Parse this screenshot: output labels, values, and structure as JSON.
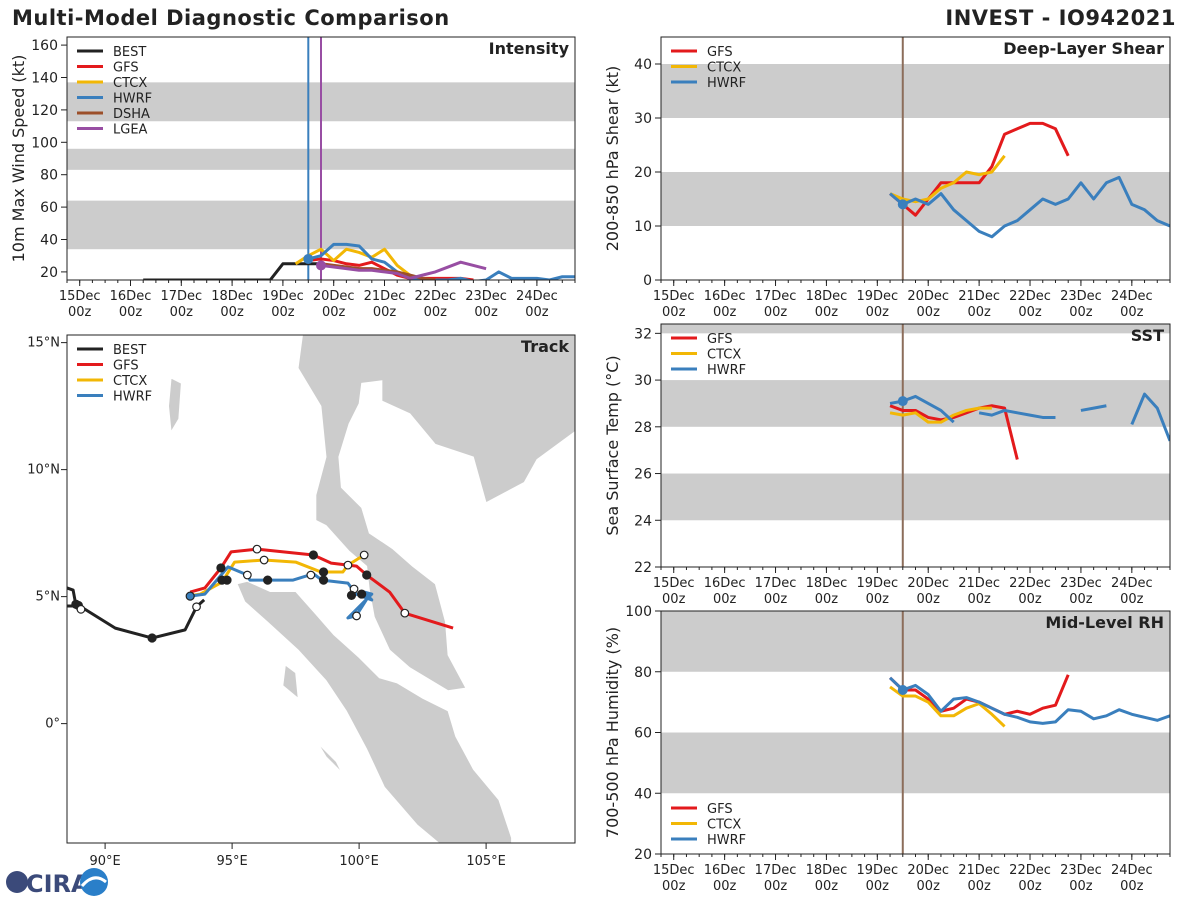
{
  "header": {
    "title": "Multi-Model Diagnostic Comparison",
    "storm": "INVEST - IO942021"
  },
  "logo": {
    "text": "CIRA"
  },
  "colors": {
    "BEST": "#222222",
    "GFS": "#e31a1c",
    "CTCX": "#f2b705",
    "HWRF": "#3a7fbd",
    "DSHA": "#9c4f2a",
    "LGEA": "#984ea3",
    "band": "#cccccc",
    "land": "#cccccc",
    "vline": "#8c6d5a"
  },
  "chart_data": [
    {
      "id": "intensity",
      "type": "line",
      "title": "Intensity",
      "ylabel": "10m Max Wind Speed (kt)",
      "xlim": [
        "14Dec 18z",
        "24Dec 18z"
      ],
      "ylim": [
        15,
        165
      ],
      "xticks": [
        "15Dec 00z",
        "16Dec 00z",
        "17Dec 00z",
        "18Dec 00z",
        "19Dec 00z",
        "20Dec 00z",
        "21Dec 00z",
        "22Dec 00z",
        "23Dec 00z",
        "24Dec 00z"
      ],
      "yticks": [
        20,
        40,
        60,
        80,
        100,
        120,
        140,
        160
      ],
      "bands": [
        [
          34,
          64
        ],
        [
          83,
          96
        ],
        [
          113,
          137
        ]
      ],
      "vlines": [
        {
          "t": "19Dec 12z",
          "color": "HWRF"
        },
        {
          "t": "19Dec 18z",
          "color": "LGEA"
        }
      ],
      "legend": [
        "BEST",
        "GFS",
        "CTCX",
        "HWRF",
        "DSHA",
        "LGEA"
      ],
      "series": [
        {
          "name": "BEST",
          "start": "16Dec 06z",
          "interval": "6h",
          "values": [
            15,
            15,
            15,
            15,
            15,
            15,
            15,
            15,
            15,
            15,
            15,
            25,
            25,
            25,
            25
          ]
        },
        {
          "name": "GFS",
          "start": "19Dec 12z",
          "interval": "6h",
          "values": [
            27,
            28,
            27,
            25,
            24,
            26,
            22,
            18,
            16,
            16,
            16,
            16,
            16,
            15
          ]
        },
        {
          "name": "CTCX",
          "start": "19Dec 06z",
          "interval": "6h",
          "values": [
            25,
            30,
            34,
            27,
            34,
            32,
            29,
            34,
            24,
            18,
            15
          ]
        },
        {
          "name": "HWRF",
          "start": "19Dec 12z",
          "interval": "6h",
          "values": [
            28,
            30,
            37,
            37,
            36,
            28,
            26,
            20,
            16,
            15,
            15,
            15,
            16,
            14,
            15,
            20,
            16,
            16,
            16,
            15,
            17,
            17
          ],
          "dot": "19Dec 12z"
        },
        {
          "name": "DSHA",
          "start": "19Dec 18z",
          "interval": "6h",
          "values": [
            25,
            24,
            23,
            22,
            22,
            21,
            20,
            18,
            16,
            15
          ]
        },
        {
          "name": "LGEA",
          "start": "19Dec 18z",
          "interval": "6h",
          "values": [
            24,
            23,
            22,
            21,
            21,
            20,
            19,
            16,
            18,
            20,
            23,
            26,
            24,
            22
          ],
          "dot": "19Dec 18z"
        }
      ]
    },
    {
      "id": "shear",
      "type": "line",
      "title": "Deep-Layer Shear",
      "ylabel": "200-850 hPa Shear (kt)",
      "xlim": [
        "14Dec 18z",
        "24Dec 18z"
      ],
      "ylim": [
        0,
        45
      ],
      "xticks": [
        "15Dec 00z",
        "16Dec 00z",
        "17Dec 00z",
        "18Dec 00z",
        "19Dec 00z",
        "20Dec 00z",
        "21Dec 00z",
        "22Dec 00z",
        "23Dec 00z",
        "24Dec 00z"
      ],
      "yticks": [
        0,
        10,
        20,
        30,
        40
      ],
      "bands": [
        [
          10,
          20
        ],
        [
          30,
          40
        ]
      ],
      "vlines": [
        {
          "t": "19Dec 12z",
          "color": "vline"
        }
      ],
      "legend": [
        "GFS",
        "CTCX",
        "HWRF"
      ],
      "series": [
        {
          "name": "GFS",
          "start": "19Dec 06z",
          "interval": "6h",
          "values": [
            16,
            14,
            12,
            15,
            18,
            18,
            18,
            18,
            21,
            27,
            28,
            29,
            29,
            28,
            23
          ]
        },
        {
          "name": "CTCX",
          "start": "19Dec 06z",
          "interval": "6h",
          "values": [
            16,
            15,
            14.5,
            15,
            17,
            18,
            20,
            19.5,
            20,
            23
          ]
        },
        {
          "name": "HWRF",
          "start": "19Dec 06z",
          "interval": "6h",
          "values": [
            16,
            14,
            15,
            14,
            16,
            13,
            11,
            9,
            8,
            10,
            11,
            13,
            15,
            14,
            15,
            18,
            15,
            18,
            19,
            14,
            13,
            11,
            10
          ],
          "dot": "19Dec 12z"
        }
      ]
    },
    {
      "id": "sst",
      "type": "line",
      "title": "SST",
      "ylabel": "Sea Surface Temp (°C)",
      "xlim": [
        "14Dec 18z",
        "24Dec 18z"
      ],
      "ylim": [
        22,
        32.4
      ],
      "xticks": [
        "15Dec 00z",
        "16Dec 00z",
        "17Dec 00z",
        "18Dec 00z",
        "19Dec 00z",
        "20Dec 00z",
        "21Dec 00z",
        "22Dec 00z",
        "23Dec 00z",
        "24Dec 00z"
      ],
      "yticks": [
        22,
        24,
        26,
        28,
        30,
        32
      ],
      "bands": [
        [
          24,
          26
        ],
        [
          28,
          30
        ],
        [
          32,
          33
        ]
      ],
      "vlines": [
        {
          "t": "19Dec 12z",
          "color": "vline"
        }
      ],
      "legend": [
        "GFS",
        "CTCX",
        "HWRF"
      ],
      "series": [
        {
          "name": "GFS",
          "start": "19Dec 06z",
          "interval": "6h",
          "values": [
            28.9,
            28.7,
            28.7,
            28.4,
            28.3,
            28.4,
            28.6,
            28.8,
            28.9,
            28.8,
            26.6
          ]
        },
        {
          "name": "CTCX",
          "start": "19Dec 06z",
          "interval": "6h",
          "values": [
            28.6,
            28.5,
            28.6,
            28.2,
            28.2,
            28.5,
            28.7,
            28.8,
            28.8
          ]
        },
        {
          "name": "HWRF",
          "start": "19Dec 06z",
          "interval": "6h",
          "values": [
            29.0,
            29.1,
            29.3,
            29.0,
            28.7,
            28.2,
            null,
            28.6,
            28.5,
            28.7,
            28.6,
            28.5,
            28.4,
            28.4,
            null,
            28.7,
            28.8,
            28.9,
            null,
            28.1,
            29.4,
            28.8,
            27.4
          ],
          "dot": "19Dec 12z"
        }
      ]
    },
    {
      "id": "rh",
      "type": "line",
      "title": "Mid-Level RH",
      "ylabel": "700-500 hPa Humidity (%)",
      "xlim": [
        "14Dec 18z",
        "24Dec 18z"
      ],
      "ylim": [
        20,
        100
      ],
      "xticks": [
        "15Dec 00z",
        "16Dec 00z",
        "17Dec 00z",
        "18Dec 00z",
        "19Dec 00z",
        "20Dec 00z",
        "21Dec 00z",
        "22Dec 00z",
        "23Dec 00z",
        "24Dec 00z"
      ],
      "yticks": [
        20,
        40,
        60,
        80,
        100
      ],
      "bands": [
        [
          40,
          60
        ],
        [
          80,
          100
        ]
      ],
      "vlines": [
        {
          "t": "19Dec 12z",
          "color": "vline"
        }
      ],
      "legend": [
        "GFS",
        "CTCX",
        "HWRF"
      ],
      "legend_pos": "bottom-left",
      "series": [
        {
          "name": "GFS",
          "start": "19Dec 06z",
          "interval": "6h",
          "values": [
            78,
            74,
            74,
            71,
            67,
            68,
            71,
            70,
            68,
            66,
            67,
            66,
            68,
            69,
            79
          ]
        },
        {
          "name": "CTCX",
          "start": "19Dec 06z",
          "interval": "6h",
          "values": [
            75,
            72,
            72,
            70,
            65.5,
            65.5,
            68,
            69.5,
            66,
            62
          ]
        },
        {
          "name": "HWRF",
          "start": "19Dec 06z",
          "interval": "6h",
          "values": [
            78,
            74,
            75.5,
            72.5,
            67,
            71,
            71.5,
            70,
            68,
            66,
            65,
            63.5,
            63,
            63.5,
            67.5,
            67,
            64.5,
            65.5,
            67.5,
            66,
            65,
            64,
            65.5
          ],
          "dot": "19Dec 12z"
        }
      ]
    },
    {
      "id": "track",
      "type": "map",
      "title": "Track",
      "lon_range": [
        88.5,
        108.5
      ],
      "lat_range": [
        -4.7,
        15.3
      ],
      "lon_ticks": [
        {
          "v": 90,
          "label": "90°E"
        },
        {
          "v": 95,
          "label": "95°E"
        },
        {
          "v": 100,
          "label": "100°E"
        },
        {
          "v": 105,
          "label": "105°E"
        }
      ],
      "lat_ticks": [
        {
          "v": 15,
          "label": "15°N"
        },
        {
          "v": 10,
          "label": "10°N"
        },
        {
          "v": 5,
          "label": "5°N"
        },
        {
          "v": 0,
          "label": "0°"
        }
      ],
      "legend": [
        "BEST",
        "GFS",
        "CTCX",
        "HWRF"
      ],
      "tracks": [
        {
          "name": "BEST",
          "segments": [
            [
              [
                88.5,
                5.34
              ],
              [
                88.74,
                5.26
              ],
              [
                88.85,
                4.67
              ]
            ],
            [
              [
                88.5,
                4.63
              ],
              [
                89.0,
                4.63
              ],
              [
                90.4,
                3.76
              ],
              [
                91.85,
                3.37
              ],
              [
                93.15,
                3.69
              ],
              [
                93.6,
                4.6
              ],
              [
                93.9,
                4.87
              ]
            ]
          ],
          "markers": [
            [
              88.85,
              4.7,
              "filled"
            ],
            [
              88.95,
              4.65,
              "filled"
            ],
            [
              89.05,
              4.5,
              "open"
            ],
            [
              91.85,
              3.37,
              "filled"
            ],
            [
              93.6,
              4.6,
              "open"
            ]
          ]
        },
        {
          "name": "GFS",
          "segments": [
            [
              [
                93.35,
                5.18
              ],
              [
                93.93,
                5.34
              ],
              [
                94.56,
                6.13
              ],
              [
                94.96,
                6.76
              ],
              [
                95.98,
                6.87
              ],
              [
                98.2,
                6.64
              ],
              [
                98.9,
                6.32
              ],
              [
                99.9,
                6.2
              ],
              [
                100.3,
                5.85
              ],
              [
                101.2,
                5.18
              ],
              [
                101.8,
                4.35
              ],
              [
                103.7,
                3.76
              ]
            ]
          ],
          "markers": [
            [
              94.56,
              6.13,
              "filled"
            ],
            [
              95.98,
              6.87,
              "open"
            ],
            [
              98.2,
              6.64,
              "filled"
            ],
            [
              100.3,
              5.85,
              "filled"
            ],
            [
              101.8,
              4.35,
              "open"
            ]
          ]
        },
        {
          "name": "CTCX",
          "segments": [
            [
              [
                93.26,
                5.02
              ],
              [
                93.75,
                5.1
              ],
              [
                94.6,
                5.57
              ],
              [
                95.1,
                6.36
              ],
              [
                96.26,
                6.44
              ],
              [
                97.5,
                6.36
              ],
              [
                98.5,
                5.97
              ],
              [
                99.36,
                5.97
              ],
              [
                99.56,
                6.24
              ],
              [
                100.2,
                6.64
              ]
            ]
          ],
          "markers": [
            [
              96.26,
              6.44,
              "open"
            ],
            [
              98.6,
              5.97,
              "filled"
            ],
            [
              99.56,
              6.24,
              "open"
            ],
            [
              100.2,
              6.64,
              "open"
            ]
          ]
        },
        {
          "name": "HWRF",
          "segments": [
            [
              [
                93.35,
                5.02
              ],
              [
                93.93,
                5.1
              ],
              [
                94.84,
                6.17
              ],
              [
                95.6,
                5.85
              ],
              [
                95.7,
                5.65
              ],
              [
                97.4,
                5.65
              ],
              [
                98.2,
                5.9
              ],
              [
                98.54,
                5.65
              ],
              [
                99.56,
                5.53
              ],
              [
                99.88,
                5.1
              ],
              [
                100.5,
                4.87
              ],
              [
                100.2,
                5.18
              ],
              [
                100.5,
                5.1
              ],
              [
                99.56,
                4.16
              ],
              [
                99.88,
                4.24
              ],
              [
                100.3,
                4.9
              ]
            ]
          ],
          "markers": [
            [
              93.35,
              5.02,
              "filled"
            ],
            [
              94.6,
              5.65,
              "filled"
            ],
            [
              94.8,
              5.65,
              "filled"
            ],
            [
              95.6,
              5.85,
              "open"
            ],
            [
              96.4,
              5.65,
              "filled"
            ],
            [
              98.1,
              5.85,
              "open"
            ],
            [
              98.6,
              5.65,
              "filled"
            ],
            [
              99.8,
              5.3,
              "open"
            ],
            [
              99.7,
              5.05,
              "filled"
            ],
            [
              100.1,
              5.1,
              "filled"
            ],
            [
              99.9,
              4.24,
              "open"
            ]
          ]
        }
      ]
    }
  ]
}
